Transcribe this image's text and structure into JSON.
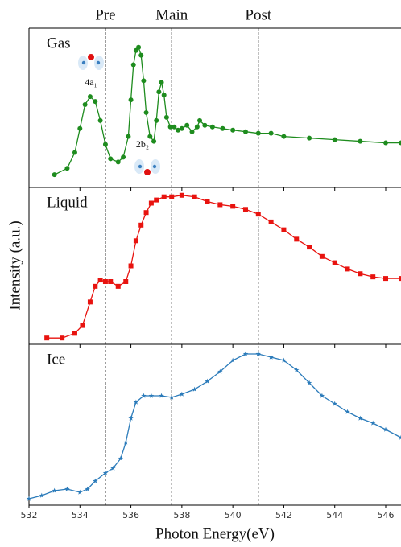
{
  "figure": {
    "ylabel": "Intensity (a.u.)",
    "xlabel": "Photon Energy(eV)",
    "xlim": [
      532,
      546.6
    ],
    "xticks": [
      532,
      534,
      536,
      538,
      540,
      542,
      544,
      546
    ],
    "vlines": [
      {
        "label": "Pre",
        "value": 535.0
      },
      {
        "label": "Main",
        "value": 537.6
      },
      {
        "label": "Post",
        "value": 541.0
      }
    ]
  },
  "chart_data": [
    {
      "type": "line",
      "label": "Gas",
      "color": "#1e8c1e",
      "marker": "circle",
      "ylim": [
        0,
        1
      ],
      "annotations": [
        "4a₁",
        "2b₂"
      ],
      "x": [
        533.0,
        533.5,
        533.8,
        534.0,
        534.2,
        534.4,
        534.6,
        534.8,
        535.0,
        535.2,
        535.5,
        535.7,
        535.9,
        536.0,
        536.1,
        536.2,
        536.3,
        536.4,
        536.5,
        536.6,
        536.75,
        536.9,
        537.0,
        537.1,
        537.2,
        537.3,
        537.4,
        537.55,
        537.7,
        537.85,
        538.0,
        538.2,
        538.4,
        538.6,
        538.7,
        538.9,
        539.2,
        539.6,
        540.0,
        540.5,
        541.0,
        541.5,
        542.0,
        543.0,
        544.0,
        545.0,
        546.0,
        546.6
      ],
      "values": [
        0.08,
        0.12,
        0.22,
        0.37,
        0.52,
        0.57,
        0.54,
        0.42,
        0.27,
        0.18,
        0.16,
        0.19,
        0.32,
        0.55,
        0.77,
        0.86,
        0.88,
        0.83,
        0.67,
        0.47,
        0.32,
        0.29,
        0.42,
        0.6,
        0.66,
        0.58,
        0.44,
        0.38,
        0.38,
        0.36,
        0.37,
        0.39,
        0.35,
        0.38,
        0.42,
        0.39,
        0.38,
        0.37,
        0.36,
        0.35,
        0.34,
        0.34,
        0.32,
        0.31,
        0.3,
        0.29,
        0.28,
        0.28
      ]
    },
    {
      "type": "line",
      "label": "Liquid",
      "color": "#e8130f",
      "marker": "square",
      "ylim": [
        0,
        1
      ],
      "x": [
        532.7,
        533.3,
        533.8,
        534.1,
        534.4,
        534.6,
        534.8,
        535.0,
        535.2,
        535.5,
        535.8,
        536.0,
        536.2,
        536.4,
        536.6,
        536.8,
        537.0,
        537.3,
        537.6,
        538.0,
        538.5,
        539.0,
        539.5,
        540.0,
        540.5,
        541.0,
        541.5,
        542.0,
        542.5,
        543.0,
        543.5,
        544.0,
        544.5,
        545.0,
        545.5,
        546.0,
        546.6
      ],
      "values": [
        0.04,
        0.04,
        0.07,
        0.12,
        0.27,
        0.37,
        0.41,
        0.4,
        0.4,
        0.37,
        0.4,
        0.5,
        0.66,
        0.76,
        0.84,
        0.9,
        0.92,
        0.94,
        0.94,
        0.95,
        0.94,
        0.91,
        0.89,
        0.88,
        0.86,
        0.83,
        0.78,
        0.73,
        0.67,
        0.62,
        0.56,
        0.52,
        0.48,
        0.45,
        0.43,
        0.42,
        0.42
      ]
    },
    {
      "type": "line",
      "label": "Ice",
      "color": "#2b7bba",
      "marker": "star",
      "ylim": [
        0,
        1
      ],
      "x": [
        532.0,
        532.5,
        533.0,
        533.5,
        534.0,
        534.3,
        534.6,
        535.0,
        535.3,
        535.6,
        535.8,
        536.0,
        536.2,
        536.5,
        536.8,
        537.2,
        537.6,
        538.0,
        538.5,
        539.0,
        539.5,
        540.0,
        540.5,
        541.0,
        541.5,
        542.0,
        542.5,
        543.0,
        543.5,
        544.0,
        544.5,
        545.0,
        545.5,
        546.0,
        546.6
      ],
      "values": [
        0.04,
        0.06,
        0.09,
        0.1,
        0.08,
        0.1,
        0.15,
        0.2,
        0.23,
        0.29,
        0.39,
        0.54,
        0.64,
        0.68,
        0.68,
        0.68,
        0.67,
        0.69,
        0.72,
        0.77,
        0.83,
        0.9,
        0.94,
        0.94,
        0.92,
        0.9,
        0.84,
        0.76,
        0.68,
        0.63,
        0.58,
        0.54,
        0.51,
        0.47,
        0.42
      ]
    }
  ]
}
